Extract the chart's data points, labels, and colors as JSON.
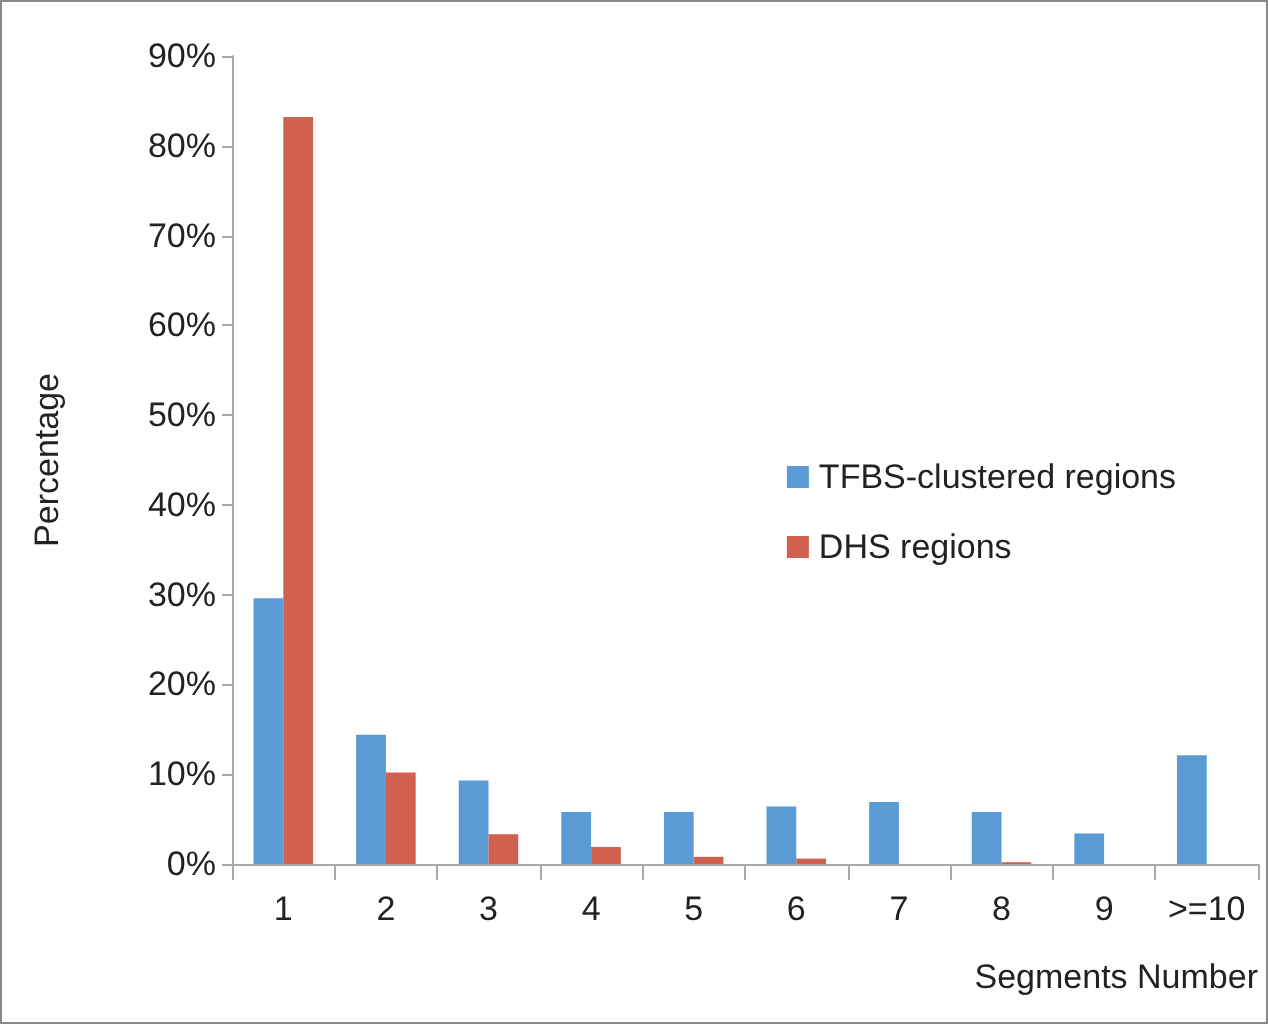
{
  "chart_data": {
    "type": "bar",
    "xlabel": "Segments Number",
    "ylabel": "Percentage",
    "categories": [
      "1",
      "2",
      "3",
      "4",
      "5",
      "6",
      "7",
      "8",
      "9",
      ">=10"
    ],
    "series": [
      {
        "name": "TFBS-clustered regions",
        "color": "#5b9bd5",
        "values": [
          29.6,
          14.4,
          9.3,
          5.8,
          5.8,
          6.4,
          6.9,
          5.8,
          3.4,
          12.1
        ]
      },
      {
        "name": "DHS regions",
        "color": "#d0614f",
        "values": [
          83.2,
          10.2,
          3.3,
          1.9,
          0.8,
          0.6,
          0,
          0.2,
          0,
          0
        ]
      }
    ],
    "ylim": [
      0,
      90
    ],
    "yticks": [
      {
        "value": 0,
        "label": "0%"
      },
      {
        "value": 10,
        "label": "10%"
      },
      {
        "value": 20,
        "label": "20%"
      },
      {
        "value": 30,
        "label": "30%"
      },
      {
        "value": 40,
        "label": "40%"
      },
      {
        "value": 50,
        "label": "50%"
      },
      {
        "value": 60,
        "label": "60%"
      },
      {
        "value": 70,
        "label": "70%"
      },
      {
        "value": 80,
        "label": "80%"
      },
      {
        "value": 90,
        "label": "90%"
      }
    ],
    "grid": false,
    "legend": "right"
  }
}
